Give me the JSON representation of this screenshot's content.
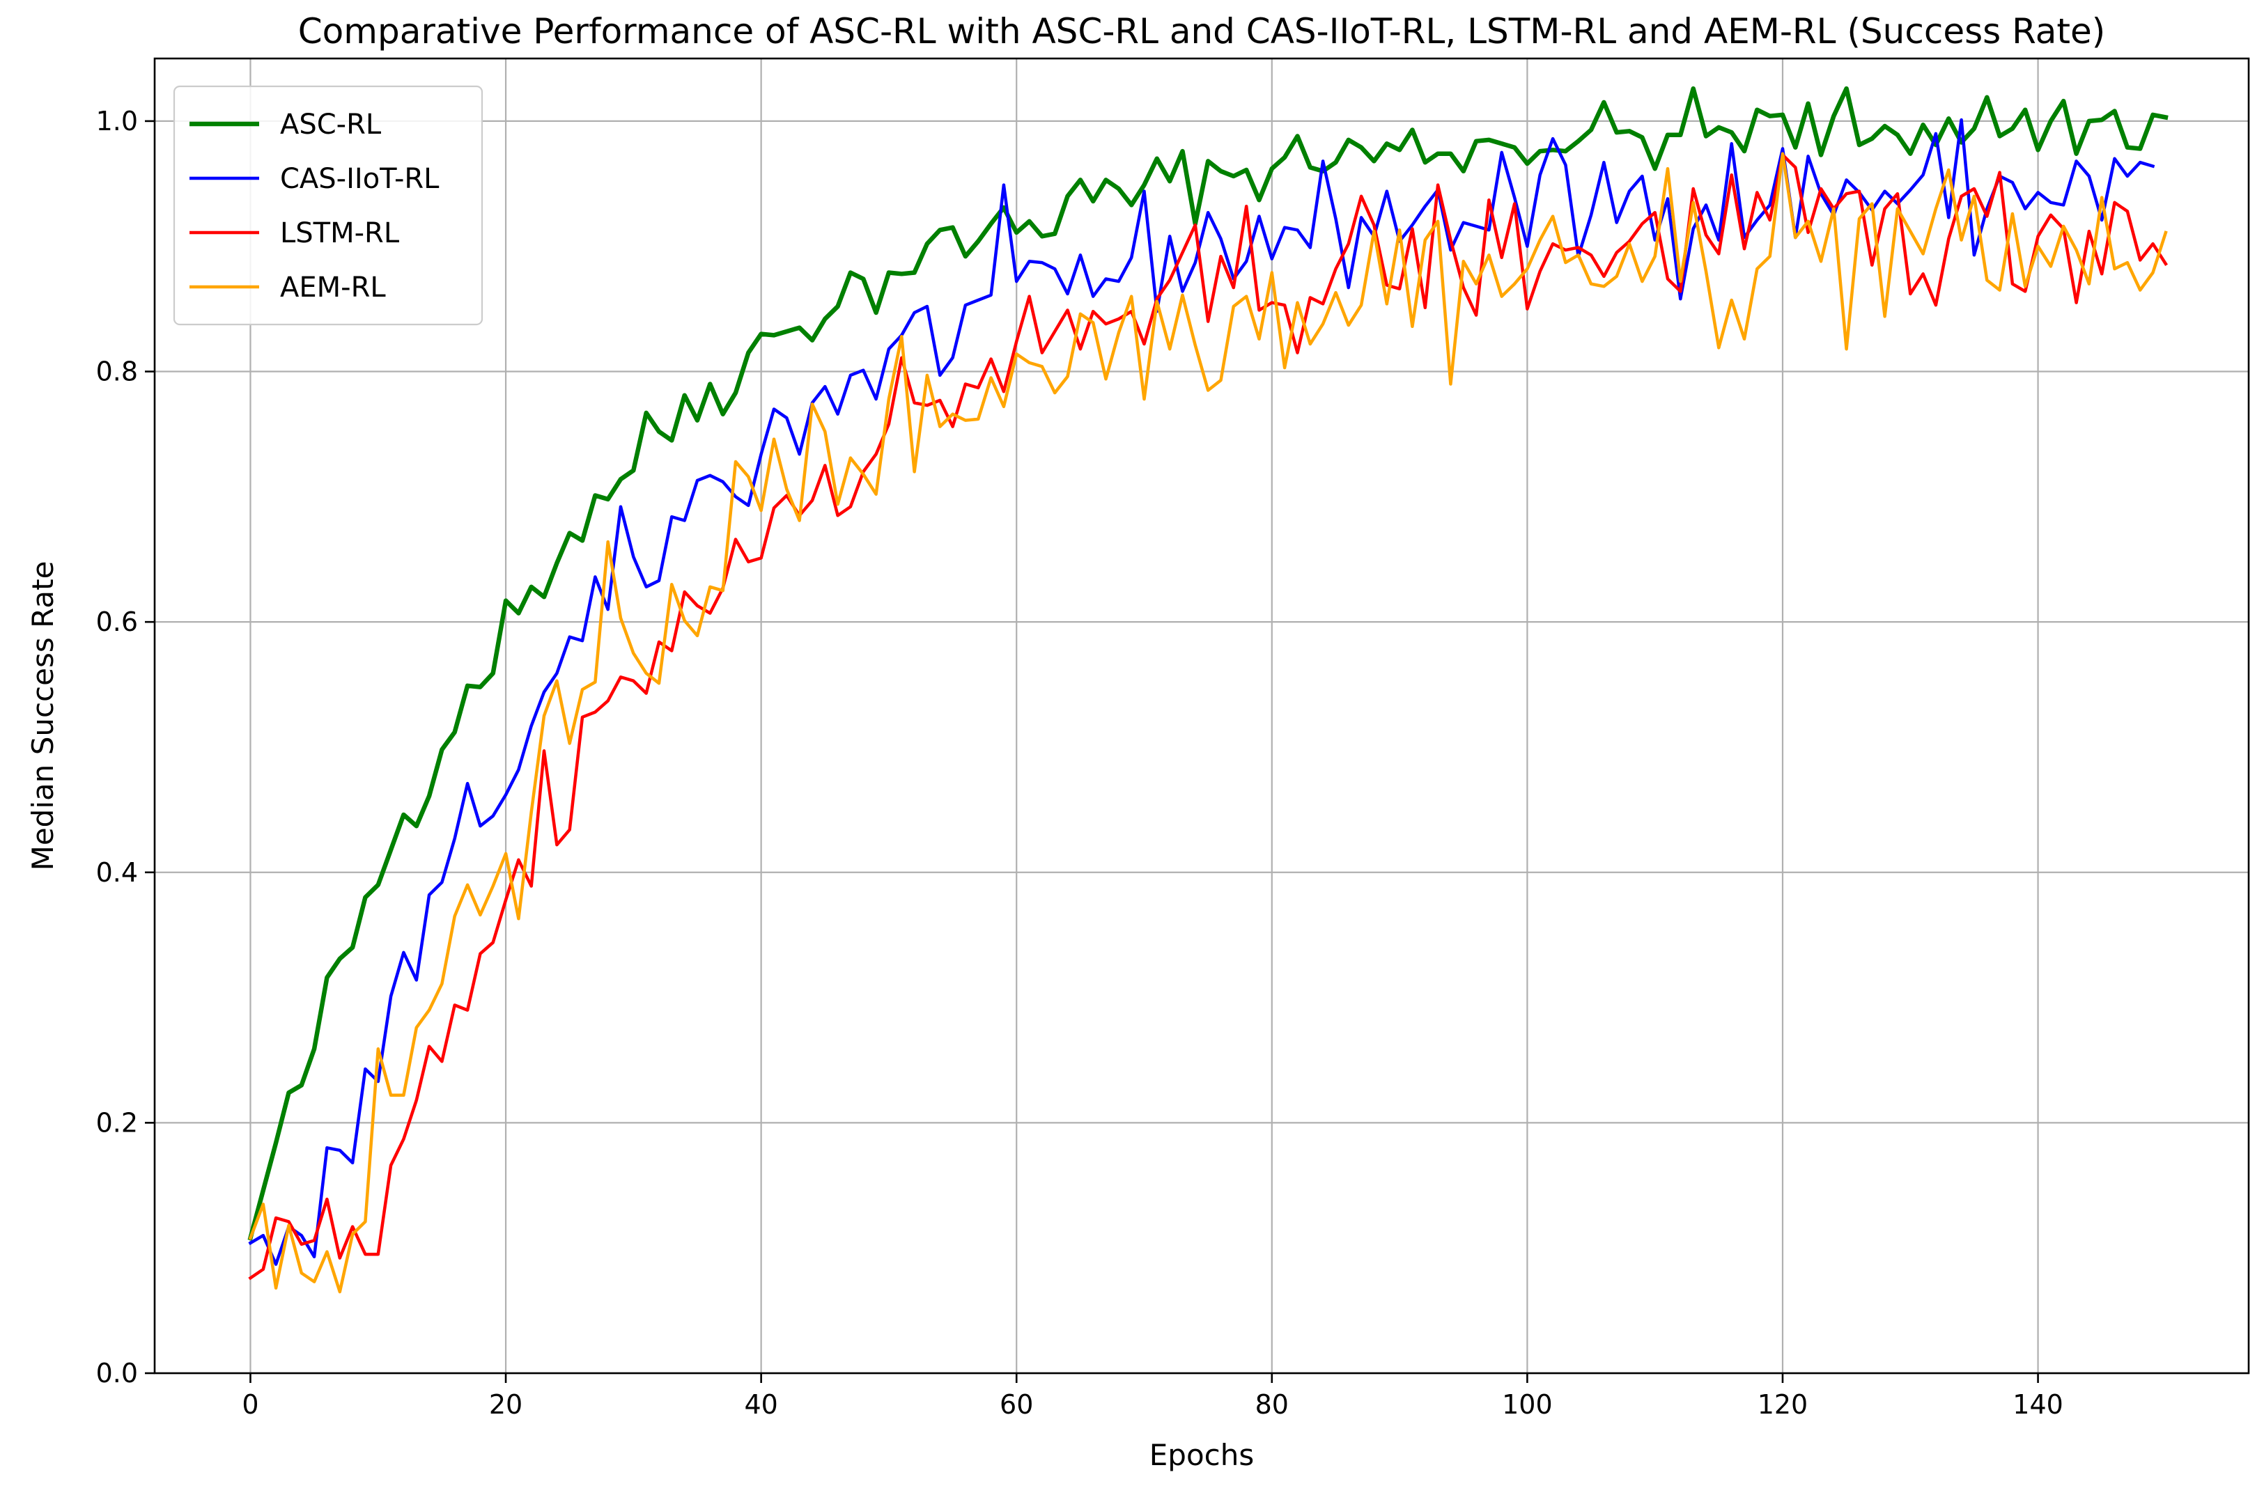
{
  "chart_data": {
    "type": "line",
    "title": "Comparative Performance of ASC-RL with  ASC-RL and CAS-IIoT-RL, LSTM-RL and AEM-RL (Success Rate)",
    "xlabel": "Epochs",
    "ylabel": "Median Success Rate",
    "xlim": [
      -7.5,
      156.5
    ],
    "ylim": [
      0.0,
      1.05
    ],
    "xticks": [
      0,
      20,
      40,
      60,
      80,
      100,
      120,
      140
    ],
    "yticks": [
      0.0,
      0.2,
      0.4,
      0.6,
      0.8,
      1.0
    ],
    "xtick_labels": [
      "0",
      "20",
      "40",
      "60",
      "80",
      "100",
      "120",
      "140"
    ],
    "ytick_labels": [
      "0.0",
      "0.2",
      "0.4",
      "0.6",
      "0.8",
      "1.0"
    ],
    "grid": true,
    "legend_position": "top-left",
    "x_start": 0,
    "x_step": 1,
    "series": [
      {
        "name": "ASC-RL",
        "color": "#008000",
        "values": [
          0.108,
          0.146,
          0.184,
          0.224,
          0.23,
          0.259,
          0.316,
          0.331,
          0.34,
          0.38,
          0.39,
          0.418,
          0.446,
          0.437,
          0.461,
          0.498,
          0.512,
          0.549,
          0.548,
          0.559,
          0.617,
          0.607,
          0.628,
          0.62,
          0.647,
          0.671,
          0.665,
          0.701,
          0.698,
          0.714,
          0.721,
          0.767,
          0.752,
          0.745,
          0.781,
          0.761,
          0.79,
          0.766,
          0.783,
          0.815,
          0.83,
          0.829,
          0.832,
          0.835,
          0.825,
          0.842,
          0.852,
          0.879,
          0.874,
          0.847,
          0.879,
          0.878,
          0.879,
          0.902,
          0.913,
          0.915,
          0.892,
          0.904,
          0.918,
          0.931,
          0.911,
          0.92,
          0.908,
          0.91,
          0.94,
          0.953,
          0.936,
          0.953,
          0.946,
          0.933,
          0.949,
          0.97,
          0.952,
          0.976,
          0.918,
          0.968,
          0.96,
          0.956,
          0.961,
          0.937,
          0.962,
          0.971,
          0.988,
          0.963,
          0.96,
          0.967,
          0.985,
          0.979,
          0.968,
          0.982,
          0.977,
          0.993,
          0.967,
          0.974,
          0.974,
          0.96,
          0.984,
          0.985,
          0.982,
          0.979,
          0.966,
          0.976,
          0.977,
          0.976,
          0.984,
          0.993,
          1.015,
          0.991,
          0.992,
          0.987,
          0.962,
          0.989,
          0.989,
          1.026,
          0.988,
          0.995,
          0.991,
          0.976,
          1.009,
          1.004,
          1.005,
          0.979,
          1.014,
          0.973,
          1.004,
          1.026,
          0.981,
          0.986,
          0.996,
          0.989,
          0.974,
          0.997,
          0.981,
          1.002,
          0.983,
          0.994,
          1.019,
          0.988,
          0.994,
          1.009,
          0.977,
          1.0,
          1.016,
          0.974,
          1.0,
          1.001,
          1.008,
          0.979,
          0.978,
          1.005,
          1.003
        ]
      },
      {
        "name": "CAS-IIoT-RL",
        "color": "#0000ff",
        "values": [
          0.104,
          0.11,
          0.087,
          0.117,
          0.11,
          0.093,
          0.18,
          0.178,
          0.168,
          0.243,
          0.233,
          0.301,
          0.336,
          0.314,
          0.382,
          0.392,
          0.427,
          0.471,
          0.437,
          0.445,
          0.462,
          0.482,
          0.517,
          0.544,
          0.559,
          0.588,
          0.585,
          0.636,
          0.61,
          0.692,
          0.652,
          0.628,
          0.633,
          0.684,
          0.681,
          0.713,
          0.717,
          0.712,
          0.7,
          0.693,
          0.734,
          0.77,
          0.763,
          0.734,
          0.775,
          0.788,
          0.766,
          0.797,
          0.801,
          0.778,
          0.818,
          0.829,
          0.847,
          0.852,
          0.797,
          0.811,
          0.853,
          0.857,
          0.861,
          0.949,
          0.872,
          0.888,
          0.887,
          0.882,
          0.862,
          0.893,
          0.86,
          0.874,
          0.872,
          0.891,
          0.944,
          0.848,
          0.908,
          0.864,
          0.887,
          0.927,
          0.906,
          0.874,
          0.888,
          0.924,
          0.89,
          0.915,
          0.913,
          0.899,
          0.968,
          0.922,
          0.867,
          0.923,
          0.908,
          0.944,
          0.904,
          0.917,
          0.932,
          0.945,
          0.897,
          0.919,
          0.916,
          0.913,
          0.975,
          0.939,
          0.9,
          0.957,
          0.986,
          0.965,
          0.892,
          0.925,
          0.967,
          0.919,
          0.944,
          0.956,
          0.905,
          0.938,
          0.858,
          0.914,
          0.933,
          0.905,
          0.982,
          0.907,
          0.921,
          0.933,
          0.978,
          0.907,
          0.972,
          0.942,
          0.925,
          0.953,
          0.943,
          0.929,
          0.944,
          0.934,
          0.945,
          0.957,
          0.99,
          0.923,
          1.001,
          0.893,
          0.93,
          0.956,
          0.951,
          0.93,
          0.943,
          0.935,
          0.933,
          0.968,
          0.956,
          0.921,
          0.97,
          0.956,
          0.967,
          0.964
        ]
      },
      {
        "name": "LSTM-RL",
        "color": "#ff0000",
        "values": [
          0.076,
          0.083,
          0.124,
          0.121,
          0.103,
          0.106,
          0.139,
          0.092,
          0.117,
          0.095,
          0.095,
          0.166,
          0.187,
          0.218,
          0.261,
          0.249,
          0.294,
          0.29,
          0.335,
          0.344,
          0.378,
          0.41,
          0.389,
          0.497,
          0.422,
          0.434,
          0.524,
          0.528,
          0.537,
          0.556,
          0.553,
          0.543,
          0.584,
          0.577,
          0.624,
          0.613,
          0.607,
          0.627,
          0.666,
          0.648,
          0.651,
          0.691,
          0.701,
          0.685,
          0.697,
          0.725,
          0.685,
          0.692,
          0.72,
          0.734,
          0.758,
          0.811,
          0.775,
          0.773,
          0.777,
          0.756,
          0.79,
          0.787,
          0.81,
          0.784,
          0.824,
          0.86,
          0.815,
          0.832,
          0.849,
          0.818,
          0.848,
          0.838,
          0.842,
          0.848,
          0.822,
          0.858,
          0.873,
          0.895,
          0.917,
          0.84,
          0.892,
          0.867,
          0.932,
          0.849,
          0.855,
          0.853,
          0.815,
          0.859,
          0.854,
          0.882,
          0.902,
          0.94,
          0.917,
          0.869,
          0.866,
          0.914,
          0.851,
          0.949,
          0.905,
          0.867,
          0.845,
          0.937,
          0.891,
          0.934,
          0.85,
          0.88,
          0.902,
          0.897,
          0.899,
          0.893,
          0.876,
          0.895,
          0.904,
          0.918,
          0.927,
          0.874,
          0.864,
          0.946,
          0.909,
          0.894,
          0.957,
          0.898,
          0.943,
          0.921,
          0.973,
          0.963,
          0.911,
          0.946,
          0.93,
          0.942,
          0.944,
          0.885,
          0.93,
          0.942,
          0.862,
          0.878,
          0.853,
          0.906,
          0.94,
          0.946,
          0.924,
          0.959,
          0.87,
          0.864,
          0.908,
          0.925,
          0.914,
          0.855,
          0.912,
          0.878,
          0.935,
          0.928,
          0.889,
          0.902,
          0.886
        ]
      },
      {
        "name": "AEM-RL",
        "color": "#ffa500",
        "values": [
          0.108,
          0.135,
          0.068,
          0.118,
          0.08,
          0.073,
          0.097,
          0.065,
          0.111,
          0.121,
          0.259,
          0.222,
          0.222,
          0.276,
          0.29,
          0.311,
          0.365,
          0.39,
          0.366,
          0.389,
          0.415,
          0.363,
          0.448,
          0.525,
          0.553,
          0.503,
          0.546,
          0.552,
          0.664,
          0.603,
          0.575,
          0.559,
          0.551,
          0.63,
          0.601,
          0.589,
          0.628,
          0.625,
          0.728,
          0.716,
          0.689,
          0.746,
          0.706,
          0.681,
          0.774,
          0.752,
          0.694,
          0.731,
          0.718,
          0.702,
          0.778,
          0.828,
          0.72,
          0.797,
          0.756,
          0.766,
          0.761,
          0.762,
          0.795,
          0.772,
          0.814,
          0.807,
          0.804,
          0.783,
          0.796,
          0.846,
          0.839,
          0.794,
          0.831,
          0.86,
          0.778,
          0.856,
          0.818,
          0.861,
          0.821,
          0.785,
          0.793,
          0.852,
          0.86,
          0.826,
          0.879,
          0.803,
          0.855,
          0.822,
          0.838,
          0.863,
          0.837,
          0.853,
          0.912,
          0.854,
          0.913,
          0.836,
          0.905,
          0.92,
          0.79,
          0.888,
          0.87,
          0.893,
          0.86,
          0.87,
          0.882,
          0.905,
          0.924,
          0.887,
          0.893,
          0.87,
          0.868,
          0.876,
          0.902,
          0.872,
          0.892,
          0.962,
          0.872,
          0.935,
          0.88,
          0.819,
          0.857,
          0.826,
          0.882,
          0.892,
          0.974,
          0.907,
          0.92,
          0.888,
          0.93,
          0.818,
          0.922,
          0.934,
          0.844,
          0.93,
          0.912,
          0.894,
          0.93,
          0.961,
          0.905,
          0.94,
          0.873,
          0.865,
          0.926,
          0.868,
          0.9,
          0.884,
          0.916,
          0.897,
          0.87,
          0.939,
          0.882,
          0.887,
          0.865,
          0.879,
          0.911
        ]
      }
    ]
  }
}
